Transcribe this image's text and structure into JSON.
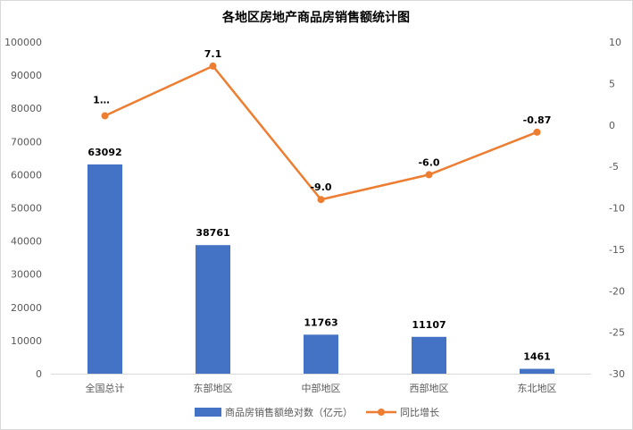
{
  "chart_data": {
    "type": "bar",
    "title": "各地区房地产商品房销售额统计图",
    "categories": [
      "全国总计",
      "东部地区",
      "中部地区",
      "西部地区",
      "东北地区"
    ],
    "series": [
      {
        "name": "商品房销售额绝对数（亿元）",
        "type": "bar",
        "axis": "left",
        "color": "#4472C4",
        "values": [
          63092,
          38761,
          11763,
          11107,
          1461
        ],
        "labels": [
          "63092",
          "38761",
          "11763",
          "11107",
          "1461"
        ]
      },
      {
        "name": "同比增长",
        "type": "line",
        "axis": "right",
        "color": "#ED7D31",
        "values": [
          1.1,
          7.1,
          -9.0,
          -6.0,
          -0.87
        ],
        "labels": [
          "1…",
          "7.1",
          "-9.0",
          "-6.0",
          "-0.87"
        ]
      }
    ],
    "y_left": {
      "ylim": [
        0,
        100000
      ],
      "ticks": [
        "0",
        "10000",
        "20000",
        "30000",
        "40000",
        "50000",
        "60000",
        "70000",
        "80000",
        "90000",
        "100000"
      ]
    },
    "y_right": {
      "ylim": [
        -30,
        10
      ],
      "ticks": [
        "-30",
        "-25",
        "-20",
        "-15",
        "-10",
        "-5",
        "0",
        "5",
        "10"
      ]
    },
    "grid": false,
    "legend_position": "bottom"
  }
}
